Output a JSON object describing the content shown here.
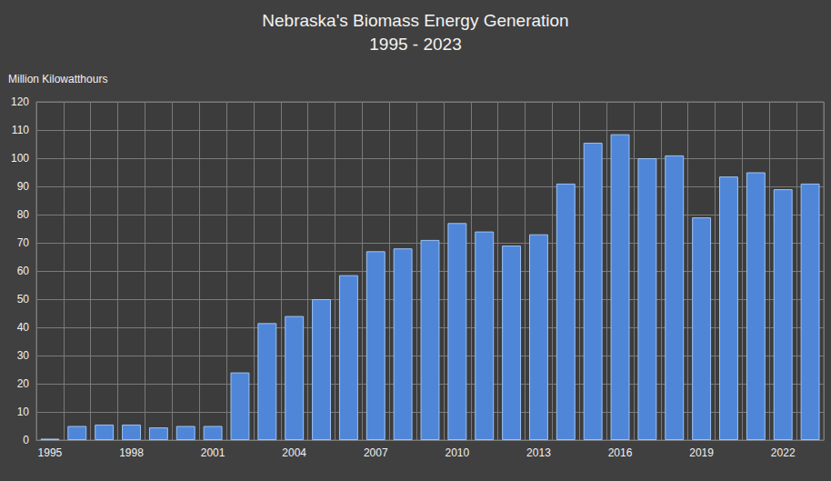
{
  "chart_data": {
    "type": "bar",
    "title": "Nebraska's Biomass Energy Generation",
    "subtitle": "1995 - 2023",
    "ylabel": "Million Kilowatthours",
    "categories": [
      "1995",
      null,
      null,
      "1998",
      null,
      null,
      "2001",
      null,
      null,
      "2004",
      null,
      null,
      "2007",
      null,
      null,
      "2010",
      null,
      null,
      "2013",
      null,
      null,
      "2016",
      null,
      null,
      "2019",
      null,
      null,
      "2022",
      null
    ],
    "values": [
      0.5,
      5,
      5.5,
      5.5,
      4.5,
      5,
      5,
      24,
      41.5,
      44,
      50,
      58.5,
      67,
      68,
      71,
      77,
      74,
      69,
      73,
      91,
      105.5,
      108.5,
      100,
      101,
      79,
      93.5,
      95,
      89,
      91
    ],
    "color": "#4f86d8",
    "ylim": [
      0,
      120
    ],
    "yticks": [
      0,
      10,
      20,
      30,
      40,
      50,
      60,
      70,
      80,
      90,
      100,
      110,
      120
    ],
    "grid": true
  }
}
